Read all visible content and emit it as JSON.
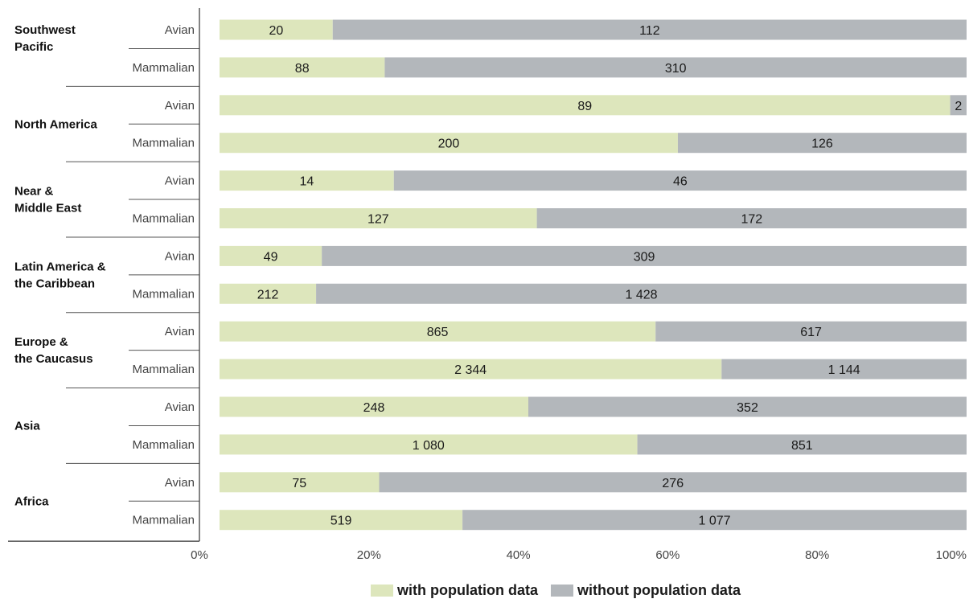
{
  "chart_data": {
    "type": "bar",
    "orientation": "horizontal",
    "stacked": true,
    "normalized_percent": true,
    "colors": {
      "with": "#dde6bc",
      "without": "#b3b7bb",
      "axis": "#333333",
      "separator": "#555555"
    },
    "xlim": [
      0,
      100
    ],
    "x_ticks": [
      "0%",
      "20%",
      "40%",
      "60%",
      "80%",
      "100%"
    ],
    "legend": {
      "position": "bottom-center",
      "items": [
        {
          "key": "with",
          "label": "with population data"
        },
        {
          "key": "without",
          "label": "without population data"
        }
      ]
    },
    "series": [
      {
        "name": "with population data",
        "key": "with"
      },
      {
        "name": "without population data",
        "key": "without"
      }
    ],
    "groups": [
      {
        "region": "Southwest Pacific",
        "region_lines": [
          "Southwest",
          "Pacific"
        ],
        "label_align": "top",
        "rows": [
          {
            "category": "Avian",
            "with": 20,
            "without": 112,
            "with_label": "20",
            "without_label": "112"
          },
          {
            "category": "Mammalian",
            "with": 88,
            "without": 310,
            "with_label": "88",
            "without_label": "310"
          }
        ]
      },
      {
        "region": "North America",
        "region_lines": [
          "North America"
        ],
        "label_align": "middle",
        "rows": [
          {
            "category": "Avian",
            "with": 89,
            "without": 2,
            "with_label": "89",
            "without_label": "2"
          },
          {
            "category": "Mammalian",
            "with": 200,
            "without": 126,
            "with_label": "200",
            "without_label": "126"
          }
        ]
      },
      {
        "region": "Near & Middle East",
        "region_lines": [
          "Near &",
          "Middle East"
        ],
        "label_align": "middle",
        "rows": [
          {
            "category": "Avian",
            "with": 14,
            "without": 46,
            "with_label": "14",
            "without_label": "46"
          },
          {
            "category": "Mammalian",
            "with": 127,
            "without": 172,
            "with_label": "127",
            "without_label": "172"
          }
        ]
      },
      {
        "region": "Latin America & the Caribbean",
        "region_lines": [
          "Latin America &",
          "the Caribbean"
        ],
        "label_align": "middle",
        "rows": [
          {
            "category": "Avian",
            "with": 49,
            "without": 309,
            "with_label": "49",
            "without_label": "309"
          },
          {
            "category": "Mammalian",
            "with": 212,
            "without": 1428,
            "with_label": "212",
            "without_label": "1 428"
          }
        ]
      },
      {
        "region": "Europe & the Caucasus",
        "region_lines": [
          "Europe &",
          "the Caucasus"
        ],
        "label_align": "middle",
        "rows": [
          {
            "category": "Avian",
            "with": 865,
            "without": 617,
            "with_label": "865",
            "without_label": "617"
          },
          {
            "category": "Mammalian",
            "with": 2344,
            "without": 1144,
            "with_label": "2 344",
            "without_label": "1 144"
          }
        ]
      },
      {
        "region": "Asia",
        "region_lines": [
          "Asia"
        ],
        "label_align": "middle",
        "rows": [
          {
            "category": "Avian",
            "with": 248,
            "without": 352,
            "with_label": "248",
            "without_label": "352"
          },
          {
            "category": "Mammalian",
            "with": 1080,
            "without": 851,
            "with_label": "1 080",
            "without_label": "851"
          }
        ]
      },
      {
        "region": "Africa",
        "region_lines": [
          "Africa"
        ],
        "label_align": "middle",
        "rows": [
          {
            "category": "Avian",
            "with": 75,
            "without": 276,
            "with_label": "75",
            "without_label": "276"
          },
          {
            "category": "Mammalian",
            "with": 519,
            "without": 1077,
            "with_label": "519",
            "without_label": "1 077"
          }
        ]
      }
    ]
  }
}
